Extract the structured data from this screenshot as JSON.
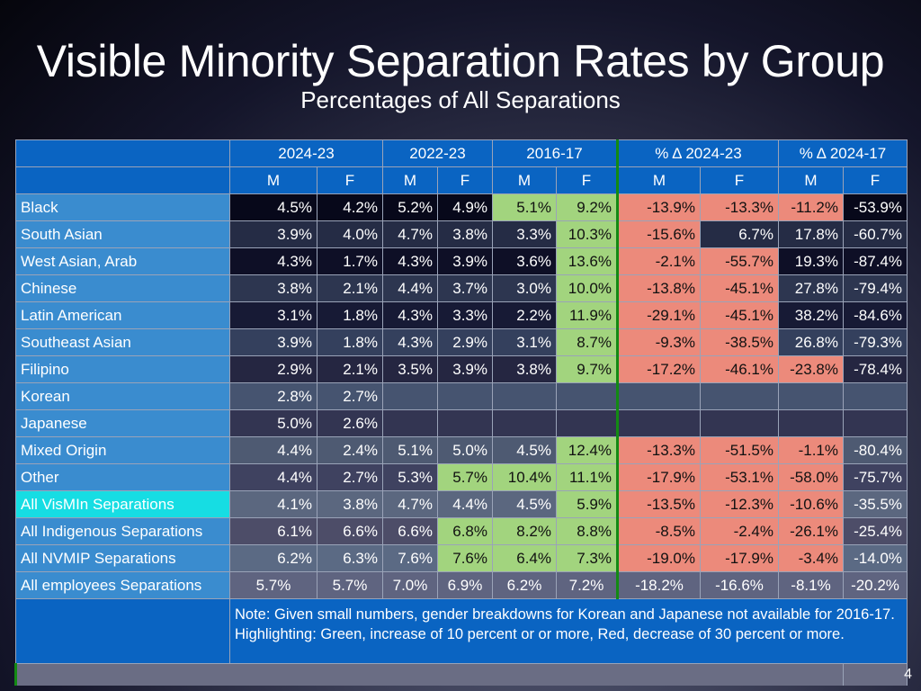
{
  "title": "Visible Minority Separation Rates by Group",
  "subtitle": "Percentages of All Separations",
  "table": {
    "period_headers": [
      "2024-23",
      "2022-23",
      "2016-17",
      "% Δ 2024-23",
      "% Δ 2024-17"
    ],
    "gender_headers": [
      "M",
      "F",
      "M",
      "F",
      "M",
      "F",
      "M",
      "F",
      "M",
      "F"
    ],
    "rows": [
      {
        "label": "Black",
        "values": [
          "4.5%",
          "4.2%",
          "5.2%",
          "4.9%",
          "5.1%",
          "9.2%",
          "-13.9%",
          "-13.3%",
          "-11.2%",
          "-53.9%"
        ],
        "highlight": [
          "",
          "",
          "",
          "",
          "green",
          "green",
          "red",
          "red",
          "red",
          ""
        ]
      },
      {
        "label": "South Asian",
        "values": [
          "3.9%",
          "4.0%",
          "4.7%",
          "3.8%",
          "3.3%",
          "10.3%",
          "-15.6%",
          "6.7%",
          "17.8%",
          "-60.7%"
        ],
        "highlight": [
          "",
          "",
          "",
          "",
          "",
          "green",
          "red",
          "",
          "",
          ""
        ]
      },
      {
        "label": "West Asian, Arab",
        "values": [
          "4.3%",
          "1.7%",
          "4.3%",
          "3.9%",
          "3.6%",
          "13.6%",
          "-2.1%",
          "-55.7%",
          "19.3%",
          "-87.4%"
        ],
        "highlight": [
          "",
          "",
          "",
          "",
          "",
          "green",
          "red",
          "red",
          "",
          ""
        ]
      },
      {
        "label": "Chinese",
        "values": [
          "3.8%",
          "2.1%",
          "4.4%",
          "3.7%",
          "3.0%",
          "10.0%",
          "-13.8%",
          "-45.1%",
          "27.8%",
          "-79.4%"
        ],
        "highlight": [
          "",
          "",
          "",
          "",
          "",
          "green",
          "red",
          "red",
          "",
          ""
        ]
      },
      {
        "label": "Latin American",
        "values": [
          "3.1%",
          "1.8%",
          "4.3%",
          "3.3%",
          "2.2%",
          "11.9%",
          "-29.1%",
          "-45.1%",
          "38.2%",
          "-84.6%"
        ],
        "highlight": [
          "",
          "",
          "",
          "",
          "",
          "green",
          "red",
          "red",
          "",
          ""
        ]
      },
      {
        "label": "Southeast Asian",
        "values": [
          "3.9%",
          "1.8%",
          "4.3%",
          "2.9%",
          "3.1%",
          "8.7%",
          "-9.3%",
          "-38.5%",
          "26.8%",
          "-79.3%"
        ],
        "highlight": [
          "",
          "",
          "",
          "",
          "",
          "green",
          "red",
          "red",
          "",
          ""
        ]
      },
      {
        "label": "Filipino",
        "values": [
          "2.9%",
          "2.1%",
          "3.5%",
          "3.9%",
          "3.8%",
          "9.7%",
          "-17.2%",
          "-46.1%",
          "-23.8%",
          "-78.4%"
        ],
        "highlight": [
          "",
          "",
          "",
          "",
          "",
          "green",
          "red",
          "red",
          "red",
          ""
        ]
      },
      {
        "label": "Korean",
        "values": [
          "2.8%",
          "2.7%",
          "",
          "",
          "",
          "",
          "",
          "",
          "",
          ""
        ],
        "highlight": [
          "",
          "",
          "",
          "",
          "",
          "",
          "",
          "",
          "",
          ""
        ]
      },
      {
        "label": "Japanese",
        "values": [
          "5.0%",
          "2.6%",
          "",
          "",
          "",
          "",
          "",
          "",
          "",
          ""
        ],
        "highlight": [
          "",
          "",
          "",
          "",
          "",
          "",
          "",
          "",
          "",
          ""
        ]
      },
      {
        "label": "Mixed Origin",
        "values": [
          "4.4%",
          "2.4%",
          "5.1%",
          "5.0%",
          "4.5%",
          "12.4%",
          "-13.3%",
          "-51.5%",
          "-1.1%",
          "-80.4%"
        ],
        "highlight": [
          "",
          "",
          "",
          "",
          "",
          "green",
          "red",
          "red",
          "red",
          ""
        ]
      },
      {
        "label": "Other",
        "values": [
          "4.4%",
          "2.7%",
          "5.3%",
          "5.7%",
          "10.4%",
          "11.1%",
          "-17.9%",
          "-53.1%",
          "-58.0%",
          "-75.7%"
        ],
        "highlight": [
          "",
          "",
          "",
          "green",
          "green",
          "green",
          "red",
          "red",
          "red",
          ""
        ]
      },
      {
        "label": "All VisMIn Separations",
        "values": [
          "4.1%",
          "3.8%",
          "4.7%",
          "4.4%",
          "4.5%",
          "5.9%",
          "-13.5%",
          "-12.3%",
          "-10.6%",
          "-35.5%"
        ],
        "highlight": [
          "",
          "",
          "",
          "",
          "",
          "green",
          "red",
          "red",
          "red",
          ""
        ],
        "label_highlight": true
      },
      {
        "label": "All Indigenous Separations",
        "values": [
          "6.1%",
          "6.6%",
          "6.6%",
          "6.8%",
          "8.2%",
          "8.8%",
          "-8.5%",
          "-2.4%",
          "-26.1%",
          "-25.4%"
        ],
        "highlight": [
          "",
          "",
          "",
          "green",
          "green",
          "green",
          "red",
          "red",
          "red",
          ""
        ]
      },
      {
        "label": "All NVMIP Separations",
        "values": [
          "6.2%",
          "6.3%",
          "7.6%",
          "7.6%",
          "6.4%",
          "7.3%",
          "-19.0%",
          "-17.9%",
          "-3.4%",
          "-14.0%"
        ],
        "highlight": [
          "",
          "",
          "",
          "green",
          "green",
          "green",
          "red",
          "red",
          "red",
          ""
        ]
      },
      {
        "label": "All employees Separations",
        "values": [
          "5.7%",
          "5.7%",
          "7.0%",
          "6.9%",
          "6.2%",
          "7.2%",
          "-18.2%",
          "-16.6%",
          "-8.1%",
          "-20.2%"
        ],
        "highlight": [
          "",
          "",
          "",
          "",
          "",
          "",
          "",
          "",
          "",
          ""
        ],
        "align_left": true
      }
    ],
    "note": "Note: Given small numbers, gender  breakdowns for Korean and Japanese not available for 2016-17. Highlighting: Green, increase of 10 percent or or more, Red, decrease of 30 percent or more."
  },
  "slide_number": "4",
  "colors": {
    "header_blue": "#0a64c2",
    "label_blue": "#3a8ccf",
    "highlight_cyan": "#16dde3",
    "increase_green": "#a2d47e",
    "decrease_red": "#ec8a7b",
    "divider_green": "#138a13"
  }
}
